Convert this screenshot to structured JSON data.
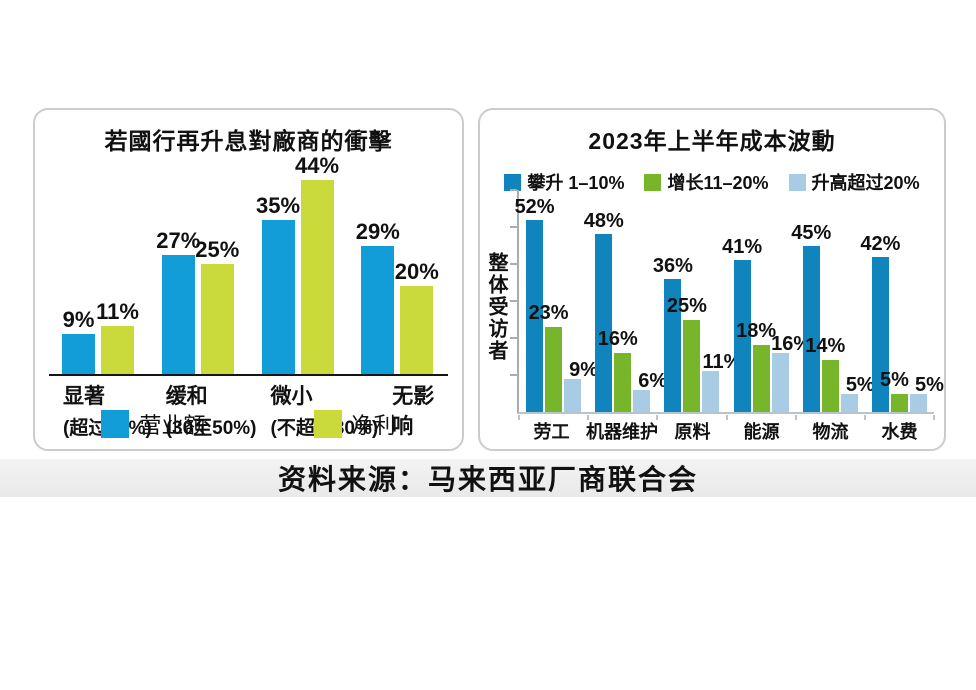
{
  "source": {
    "text": "资料来源：马来西亚厂商联合会"
  },
  "chart_data": [
    {
      "type": "bar",
      "title": "若國行再升息對廠商的衝擊",
      "categories": [
        "显著",
        "缓和",
        "微小",
        "无影响"
      ],
      "category_sublabels": [
        "(超过50%)",
        "(30至50%)",
        "(不超过30%)",
        ""
      ],
      "value_suffix": "%",
      "series": [
        {
          "name": "营业额",
          "color": "#129dd9",
          "values": [
            9,
            27,
            35,
            29
          ]
        },
        {
          "name": "净利",
          "color": "#c9da3a",
          "values": [
            11,
            25,
            44,
            20
          ]
        }
      ],
      "ylim": [
        0,
        50
      ],
      "grid": false,
      "legend_position": "bottom",
      "axis_color": "#151515"
    },
    {
      "type": "bar",
      "title": "2023年上半年成本波動",
      "ylabel": "整体受访者",
      "categories": [
        "劳工",
        "机器维护",
        "原料",
        "能源",
        "物流",
        "水费"
      ],
      "value_suffix": "%",
      "series": [
        {
          "name": "攀升 1–10%",
          "color": "#1084bd",
          "values": [
            52,
            48,
            36,
            41,
            45,
            42
          ]
        },
        {
          "name": "增长11–20%",
          "color": "#77b52b",
          "values": [
            23,
            16,
            25,
            18,
            14,
            5
          ]
        },
        {
          "name": "升高超过20%",
          "color": "#a8cce4",
          "values": [
            9,
            6,
            11,
            16,
            5,
            5
          ]
        }
      ],
      "ylim": [
        0,
        60
      ],
      "ytick_step": 10,
      "grid": false,
      "legend_position": "top",
      "axis_color": "#a7adb1"
    }
  ]
}
